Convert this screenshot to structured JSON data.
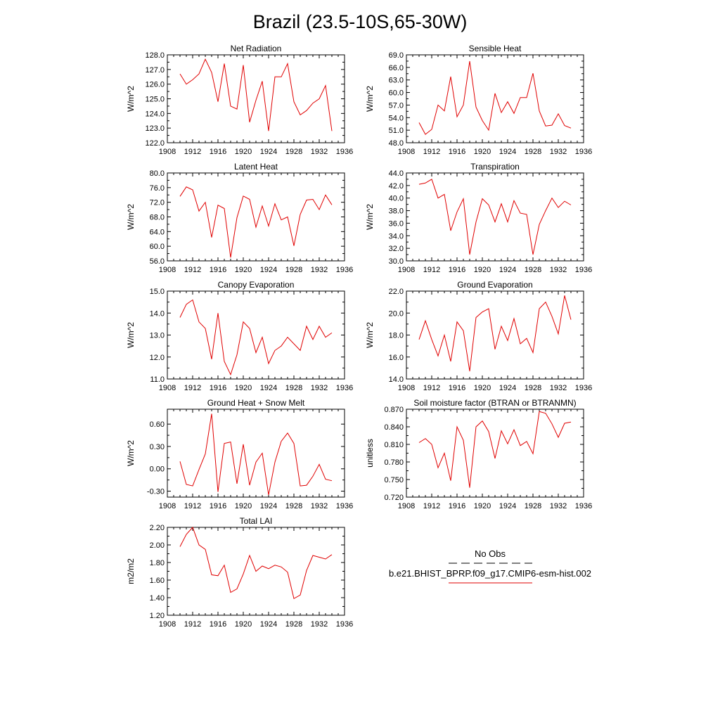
{
  "figure": {
    "title": "Brazil (23.5-10S,65-30W)"
  },
  "legend": {
    "entries": [
      {
        "name": "No Obs",
        "color": "#000000",
        "style": "dashed"
      },
      {
        "name": "b.e21.BHIST_BPRP.f09_g17.CMIP6-esm-hist.002",
        "color": "#e00000",
        "style": "solid"
      }
    ]
  },
  "chart_data": [
    {
      "type": "line",
      "title": "Net Radiation",
      "ylabel": "W/m^2",
      "xlim": [
        1908,
        1936
      ],
      "ylim": [
        122.0,
        128.0
      ],
      "x_ticks": [
        1908,
        1912,
        1916,
        1920,
        1924,
        1928,
        1932,
        1936
      ],
      "y_ticks": [
        "122.0",
        "123.0",
        "124.0",
        "125.0",
        "126.0",
        "127.0",
        "128.0"
      ],
      "x": [
        1910,
        1911,
        1912,
        1913,
        1914,
        1915,
        1916,
        1917,
        1918,
        1919,
        1920,
        1921,
        1922,
        1923,
        1924,
        1925,
        1926,
        1927,
        1928,
        1929,
        1930,
        1931,
        1932,
        1933,
        1934
      ],
      "series": [
        {
          "color": "#e00000",
          "values": [
            126.7,
            126.0,
            126.3,
            126.7,
            127.7,
            126.8,
            124.8,
            127.4,
            124.5,
            124.3,
            127.3,
            123.4,
            124.9,
            126.2,
            122.8,
            126.5,
            126.5,
            127.4,
            124.8,
            123.9,
            124.2,
            124.7,
            125.0,
            125.9,
            122.8
          ]
        }
      ]
    },
    {
      "type": "line",
      "title": "Sensible Heat",
      "ylabel": "W/m^2",
      "xlim": [
        1908,
        1936
      ],
      "ylim": [
        48.0,
        69.0
      ],
      "x_ticks": [
        1908,
        1912,
        1916,
        1920,
        1924,
        1928,
        1932,
        1936
      ],
      "y_ticks": [
        "48.0",
        "51.0",
        "54.0",
        "57.0",
        "60.0",
        "63.0",
        "66.0",
        "69.0"
      ],
      "x": [
        1910,
        1911,
        1912,
        1913,
        1914,
        1915,
        1916,
        1917,
        1918,
        1919,
        1920,
        1921,
        1922,
        1923,
        1924,
        1925,
        1926,
        1927,
        1928,
        1929,
        1930,
        1931,
        1932,
        1933,
        1934
      ],
      "series": [
        {
          "color": "#e00000",
          "values": [
            52.8,
            50.0,
            51.2,
            57.0,
            55.6,
            63.8,
            54.2,
            57.0,
            67.5,
            56.5,
            53.3,
            51.0,
            59.8,
            55.2,
            57.8,
            55.0,
            58.8,
            58.8,
            64.6,
            55.6,
            52.0,
            52.2,
            54.9,
            52.1,
            51.5
          ]
        }
      ]
    },
    {
      "type": "line",
      "title": "Latent Heat",
      "ylabel": "W/m^2",
      "xlim": [
        1908,
        1936
      ],
      "ylim": [
        56.0,
        80.0
      ],
      "x_ticks": [
        1908,
        1912,
        1916,
        1920,
        1924,
        1928,
        1932,
        1936
      ],
      "y_ticks": [
        "56.0",
        "60.0",
        "64.0",
        "68.0",
        "72.0",
        "76.0",
        "80.0"
      ],
      "x": [
        1910,
        1911,
        1912,
        1913,
        1914,
        1915,
        1916,
        1917,
        1918,
        1919,
        1920,
        1921,
        1922,
        1923,
        1924,
        1925,
        1926,
        1927,
        1928,
        1929,
        1930,
        1931,
        1932,
        1933,
        1934
      ],
      "series": [
        {
          "color": "#e00000",
          "values": [
            73.6,
            76.2,
            75.4,
            69.6,
            72.0,
            62.4,
            71.2,
            70.3,
            56.9,
            67.8,
            73.7,
            72.8,
            65.2,
            71.0,
            65.5,
            71.6,
            67.2,
            68.0,
            60.1,
            68.7,
            72.6,
            72.8,
            70.0,
            74.0,
            71.3
          ]
        }
      ]
    },
    {
      "type": "line",
      "title": "Transpiration",
      "ylabel": "W/m^2",
      "xlim": [
        1908,
        1936
      ],
      "ylim": [
        30.0,
        44.0
      ],
      "x_ticks": [
        1908,
        1912,
        1916,
        1920,
        1924,
        1928,
        1932,
        1936
      ],
      "y_ticks": [
        "30.0",
        "32.0",
        "34.0",
        "36.0",
        "38.0",
        "40.0",
        "42.0",
        "44.0"
      ],
      "x": [
        1910,
        1911,
        1912,
        1913,
        1914,
        1915,
        1916,
        1917,
        1918,
        1919,
        1920,
        1921,
        1922,
        1923,
        1924,
        1925,
        1926,
        1927,
        1928,
        1929,
        1930,
        1931,
        1932,
        1933,
        1934
      ],
      "series": [
        {
          "color": "#e00000",
          "values": [
            42.2,
            42.4,
            43.0,
            40.0,
            40.6,
            34.8,
            37.8,
            39.9,
            31.0,
            36.2,
            39.9,
            38.9,
            36.2,
            39.1,
            36.2,
            39.6,
            37.6,
            37.4,
            31.0,
            35.8,
            38.0,
            40.0,
            38.5,
            39.5,
            38.9
          ]
        }
      ]
    },
    {
      "type": "line",
      "title": "Canopy Evaporation",
      "ylabel": "W/m^2",
      "xlim": [
        1908,
        1936
      ],
      "ylim": [
        11.0,
        15.0
      ],
      "x_ticks": [
        1908,
        1912,
        1916,
        1920,
        1924,
        1928,
        1932,
        1936
      ],
      "y_ticks": [
        "11.0",
        "12.0",
        "13.0",
        "14.0",
        "15.0"
      ],
      "x": [
        1910,
        1911,
        1912,
        1913,
        1914,
        1915,
        1916,
        1917,
        1918,
        1919,
        1920,
        1921,
        1922,
        1923,
        1924,
        1925,
        1926,
        1927,
        1928,
        1929,
        1930,
        1931,
        1932,
        1933,
        1934
      ],
      "series": [
        {
          "color": "#e00000",
          "values": [
            13.8,
            14.4,
            14.6,
            13.6,
            13.3,
            11.9,
            14.0,
            11.8,
            11.2,
            12.1,
            13.6,
            13.3,
            12.2,
            12.9,
            11.7,
            12.3,
            12.5,
            12.9,
            12.6,
            12.3,
            13.4,
            12.8,
            13.4,
            12.9,
            13.1
          ]
        }
      ]
    },
    {
      "type": "line",
      "title": "Ground Evaporation",
      "ylabel": "W/m^2",
      "xlim": [
        1908,
        1936
      ],
      "ylim": [
        14.0,
        22.0
      ],
      "x_ticks": [
        1908,
        1912,
        1916,
        1920,
        1924,
        1928,
        1932,
        1936
      ],
      "y_ticks": [
        "14.0",
        "16.0",
        "18.0",
        "20.0",
        "22.0"
      ],
      "x": [
        1910,
        1911,
        1912,
        1913,
        1914,
        1915,
        1916,
        1917,
        1918,
        1919,
        1920,
        1921,
        1922,
        1923,
        1924,
        1925,
        1926,
        1927,
        1928,
        1929,
        1930,
        1931,
        1932,
        1933,
        1934
      ],
      "series": [
        {
          "color": "#e00000",
          "values": [
            17.6,
            19.3,
            17.6,
            16.1,
            18.0,
            15.6,
            19.2,
            18.4,
            14.7,
            19.6,
            20.1,
            20.4,
            16.7,
            18.8,
            17.5,
            19.5,
            17.2,
            17.7,
            16.4,
            20.4,
            21.0,
            19.7,
            18.1,
            21.6,
            19.4
          ]
        }
      ]
    },
    {
      "type": "line",
      "title": "Ground Heat + Snow Melt",
      "ylabel": "W/m^2",
      "xlim": [
        1908,
        1936
      ],
      "ylim": [
        -0.38,
        0.8
      ],
      "x_ticks": [
        1908,
        1912,
        1916,
        1920,
        1924,
        1928,
        1932,
        1936
      ],
      "y_ticks": [
        "-0.30",
        "0.00",
        "0.30",
        "0.60"
      ],
      "y_tick_values": [
        -0.3,
        0.0,
        0.3,
        0.6
      ],
      "x": [
        1910,
        1911,
        1912,
        1913,
        1914,
        1915,
        1916,
        1917,
        1918,
        1919,
        1920,
        1921,
        1922,
        1923,
        1924,
        1925,
        1926,
        1927,
        1928,
        1929,
        1930,
        1931,
        1932,
        1933,
        1934
      ],
      "series": [
        {
          "color": "#e00000",
          "values": [
            0.1,
            -0.21,
            -0.23,
            -0.01,
            0.2,
            0.74,
            -0.31,
            0.34,
            0.36,
            -0.2,
            0.33,
            -0.22,
            0.09,
            0.21,
            -0.35,
            0.09,
            0.37,
            0.48,
            0.34,
            -0.23,
            -0.22,
            -0.1,
            0.06,
            -0.14,
            -0.16
          ]
        }
      ]
    },
    {
      "type": "line",
      "title": "Soil moisture factor (BTRAN or BTRANMN)",
      "ylabel": "unitless",
      "xlim": [
        1908,
        1936
      ],
      "ylim": [
        0.72,
        0.87
      ],
      "x_ticks": [
        1908,
        1912,
        1916,
        1920,
        1924,
        1928,
        1932,
        1936
      ],
      "y_ticks": [
        "0.720",
        "0.750",
        "0.780",
        "0.810",
        "0.840",
        "0.870"
      ],
      "x": [
        1910,
        1911,
        1912,
        1913,
        1914,
        1915,
        1916,
        1917,
        1918,
        1919,
        1920,
        1921,
        1922,
        1923,
        1924,
        1925,
        1926,
        1927,
        1928,
        1929,
        1930,
        1931,
        1932,
        1933,
        1934
      ],
      "series": [
        {
          "color": "#e00000",
          "values": [
            0.813,
            0.82,
            0.81,
            0.77,
            0.795,
            0.748,
            0.84,
            0.817,
            0.736,
            0.84,
            0.85,
            0.832,
            0.786,
            0.833,
            0.811,
            0.835,
            0.808,
            0.815,
            0.794,
            0.866,
            0.863,
            0.845,
            0.822,
            0.846,
            0.848
          ]
        }
      ]
    },
    {
      "type": "line",
      "title": "Total LAI",
      "ylabel": "m2/m2",
      "xlim": [
        1908,
        1936
      ],
      "ylim": [
        1.2,
        2.2
      ],
      "x_ticks": [
        1908,
        1912,
        1916,
        1920,
        1924,
        1928,
        1932,
        1936
      ],
      "y_ticks": [
        "1.20",
        "1.40",
        "1.60",
        "1.80",
        "2.00",
        "2.20"
      ],
      "x": [
        1910,
        1911,
        1912,
        1913,
        1914,
        1915,
        1916,
        1917,
        1918,
        1919,
        1920,
        1921,
        1922,
        1923,
        1924,
        1925,
        1926,
        1927,
        1928,
        1929,
        1930,
        1931,
        1932,
        1933,
        1934
      ],
      "series": [
        {
          "color": "#e00000",
          "values": [
            1.98,
            2.12,
            2.2,
            2.0,
            1.95,
            1.66,
            1.65,
            1.77,
            1.46,
            1.5,
            1.67,
            1.88,
            1.7,
            1.76,
            1.73,
            1.77,
            1.75,
            1.69,
            1.39,
            1.43,
            1.71,
            1.88,
            1.86,
            1.84,
            1.89
          ]
        }
      ]
    }
  ]
}
